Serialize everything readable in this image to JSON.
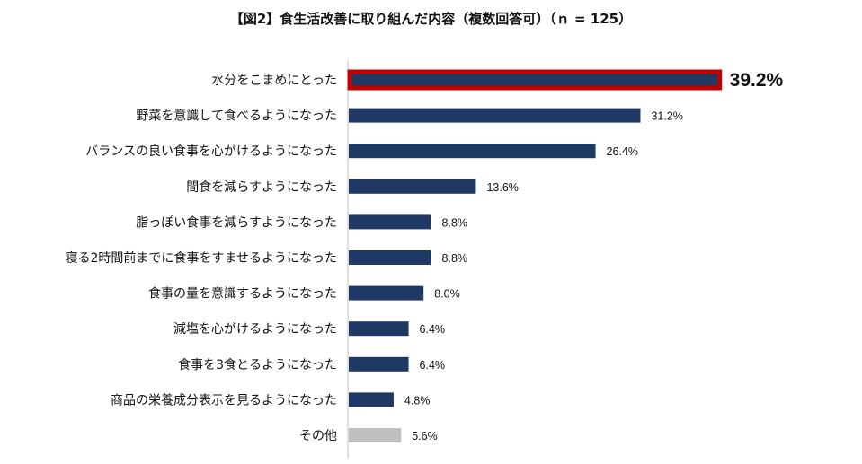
{
  "chart_data": {
    "type": "bar",
    "orientation": "horizontal",
    "title": "【図2】食生活改善に取り組んだ内容（複数回答可）（ｎ = 125）",
    "categories": [
      "水分をこまめにとった",
      "野菜を意識して食べるようになった",
      "バランスの良い食事を心がけるようになった",
      "間食を減らすようになった",
      "脂っぽい食事を減らすようになった",
      "寝る2時間前までに食事をすませるようになった",
      "食事の量を意識するようになった",
      "減塩を心がけるようになった",
      "食事を3食とるようになった",
      "商品の栄養成分表示を見るようになった",
      "その他"
    ],
    "values": [
      39.2,
      31.2,
      26.4,
      13.6,
      8.8,
      8.8,
      8.0,
      6.4,
      6.4,
      4.8,
      5.6
    ],
    "value_labels": [
      "39.2%",
      "31.2%",
      "26.4%",
      "13.6%",
      "8.8%",
      "8.8%",
      "8.0%",
      "6.4%",
      "6.4%",
      "4.8%",
      "5.6%"
    ],
    "unit": "%",
    "xlim": [
      0,
      40
    ],
    "highlight_index": 0,
    "other_index": 10,
    "grid": false,
    "legend": "none",
    "colors": {
      "bar": "#1F3864",
      "highlight_border": "#C00000",
      "other": "#BFBFBF",
      "axis": "#BFBFBF"
    }
  }
}
